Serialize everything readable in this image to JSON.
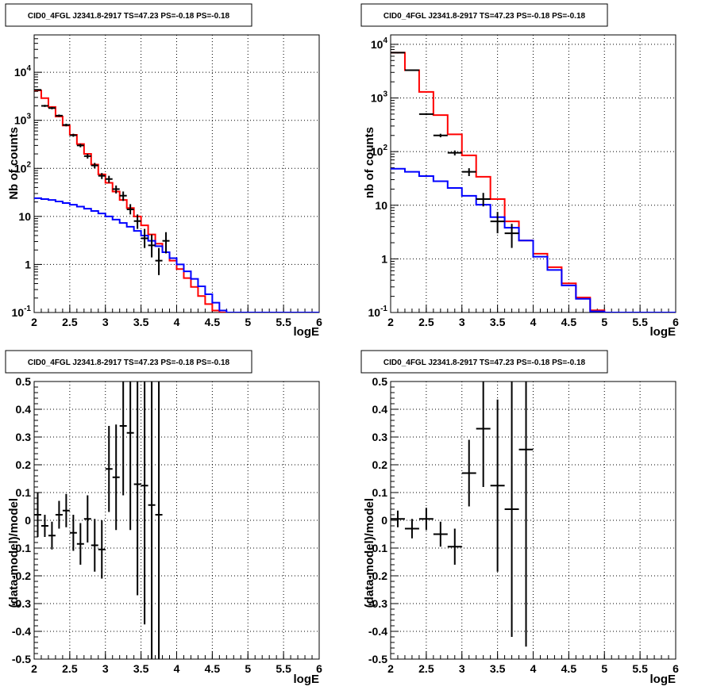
{
  "colors": {
    "data": "#000000",
    "model_total": "#ff0000",
    "model_background": "#0000ff",
    "grid": "#000000"
  },
  "chart_data": [
    {
      "panel": "top-left",
      "type": "line",
      "title": "CID0_4FGL J2341.8-2917 TS=47.23 PS=-0.18 PS=-0.18",
      "xlabel": "logE",
      "ylabel": "Nb of counts",
      "xlim": [
        2,
        6
      ],
      "ylim": [
        0.1,
        60000
      ],
      "yscale": "log",
      "grid": true,
      "x_ticks": [
        "2",
        "2.5",
        "3",
        "3.5",
        "4",
        "4.5",
        "5",
        "5.5",
        "6"
      ],
      "y_ticks": [
        "10^-1",
        "1",
        "10",
        "10^2",
        "10^3",
        "10^4"
      ],
      "bin_edges": [
        2.0,
        2.1,
        2.2,
        2.3,
        2.4,
        2.5,
        2.6,
        2.7,
        2.8,
        2.9,
        3.0,
        3.1,
        3.2,
        3.3,
        3.4,
        3.5,
        3.6,
        3.7,
        3.8,
        3.9,
        4.0,
        4.1,
        4.2,
        4.3,
        4.4,
        4.5,
        4.6,
        4.7,
        4.8,
        4.9,
        5.0,
        5.1,
        5.2,
        5.3,
        5.4,
        5.5,
        5.6,
        5.7,
        5.8,
        5.9,
        6.0
      ],
      "series": [
        {
          "name": "model_total",
          "kind": "step",
          "values": [
            4200,
            2900,
            1900,
            1200,
            780,
            500,
            320,
            200,
            120,
            75,
            50,
            33,
            22,
            15,
            10,
            6.5,
            4.2,
            2.7,
            1.8,
            1.2,
            0.8,
            0.52,
            0.34,
            0.22,
            0.15,
            0.11,
            0.1,
            0.1,
            0.1,
            0.1,
            0.1,
            0.1,
            0.1,
            0.1,
            0.1,
            0.1,
            0.1,
            0.1,
            0.1,
            0.1
          ]
        },
        {
          "name": "model_background",
          "kind": "step",
          "values": [
            24,
            23,
            22,
            20.5,
            19,
            17.5,
            16,
            14.5,
            13,
            11.5,
            10,
            8.6,
            7.3,
            6.1,
            5,
            4,
            3.1,
            2.4,
            1.8,
            1.35,
            1.0,
            0.72,
            0.5,
            0.35,
            0.24,
            0.16,
            0.11,
            0.1,
            0.1,
            0.1,
            0.1,
            0.1,
            0.1,
            0.1,
            0.1,
            0.1,
            0.1,
            0.1,
            0.1,
            0.1
          ]
        },
        {
          "name": "data",
          "kind": "points",
          "points": [
            [
              2.05,
              4300,
              4150,
              4450
            ],
            [
              2.15,
              2000,
              1900,
              2100
            ],
            [
              2.25,
              1800,
              1700,
              1900
            ],
            [
              2.35,
              1250,
              1180,
              1320
            ],
            [
              2.45,
              800,
              750,
              850
            ],
            [
              2.55,
              490,
              455,
              525
            ],
            [
              2.65,
              300,
              275,
              325
            ],
            [
              2.75,
              180,
              160,
              200
            ],
            [
              2.85,
              115,
              100,
              130
            ],
            [
              2.95,
              70,
              60,
              80
            ],
            [
              3.05,
              60,
              50,
              70
            ],
            [
              3.15,
              37,
              30,
              44
            ],
            [
              3.25,
              27,
              21,
              33
            ],
            [
              3.35,
              14,
              11,
              18
            ],
            [
              3.45,
              8,
              5.5,
              11
            ],
            [
              3.55,
              3.5,
              2.2,
              5.5
            ],
            [
              3.65,
              2.5,
              1.4,
              4.2
            ],
            [
              3.75,
              1.2,
              0.6,
              2.2
            ],
            [
              3.85,
              3.1,
              1.7,
              4.7
            ]
          ]
        }
      ]
    },
    {
      "panel": "top-right",
      "type": "line",
      "title": "CID0_4FGL J2341.8-2917 TS=47.23 PS=-0.18 PS=-0.18",
      "xlabel": "logE",
      "ylabel": "nb of counts",
      "xlim": [
        2,
        6
      ],
      "ylim": [
        0.1,
        15000
      ],
      "yscale": "log",
      "grid": true,
      "x_ticks": [
        "2",
        "2.5",
        "3",
        "3.5",
        "4",
        "4.5",
        "5",
        "5.5",
        "6"
      ],
      "y_ticks": [
        "10^-1",
        "1",
        "10",
        "10^2",
        "10^3",
        "10^4"
      ],
      "bin_edges": [
        2.0,
        2.2,
        2.4,
        2.6,
        2.8,
        3.0,
        3.2,
        3.4,
        3.6,
        3.8,
        4.0,
        4.2,
        4.4,
        4.6,
        4.8,
        5.0,
        5.2,
        5.4,
        5.6,
        5.8,
        6.0
      ],
      "series": [
        {
          "name": "model_total",
          "kind": "step",
          "values": [
            7000,
            3300,
            1300,
            480,
            210,
            85,
            34,
            13,
            5,
            2.2,
            1.25,
            0.7,
            0.35,
            0.19,
            0.11,
            0.1,
            0.1,
            0.1,
            0.1,
            0.1
          ]
        },
        {
          "name": "model_background",
          "kind": "step",
          "values": [
            48,
            42,
            35,
            28,
            21,
            15,
            10.2,
            6,
            3.8,
            2.2,
            1.1,
            0.62,
            0.32,
            0.18,
            0.105,
            0.1,
            0.1,
            0.1,
            0.1,
            0.1
          ]
        },
        {
          "name": "data",
          "kind": "points",
          "points": [
            [
              2.1,
              7000,
              6800,
              7200
            ],
            [
              2.3,
              3300,
              3200,
              3400
            ],
            [
              2.5,
              500,
              480,
              520
            ],
            [
              2.7,
              200,
              185,
              215
            ],
            [
              2.9,
              95,
              85,
              105
            ],
            [
              3.1,
              42,
              35,
              49
            ],
            [
              3.3,
              13,
              9.5,
              17
            ],
            [
              3.5,
              5,
              3,
              7.5
            ],
            [
              3.7,
              3,
              1.6,
              4.5
            ]
          ]
        }
      ]
    },
    {
      "panel": "bottom-left",
      "type": "scatter",
      "title": "CID0_4FGL J2341.8-2917 TS=47.23 PS=-0.18 PS=-0.18",
      "xlabel": "logE",
      "ylabel": "(data-model)/model",
      "xlim": [
        2,
        6
      ],
      "ylim": [
        -0.5,
        0.5
      ],
      "yscale": "linear",
      "grid": true,
      "x_ticks": [
        "2",
        "2.5",
        "3",
        "3.5",
        "4",
        "4.5",
        "5",
        "5.5",
        "6"
      ],
      "y_ticks": [
        "-0.5",
        "-0.4",
        "-0.3",
        "-0.2",
        "-0.1",
        "0",
        "0.1",
        "0.2",
        "0.3",
        "0.4",
        "0.5"
      ],
      "series": [
        {
          "name": "residual",
          "kind": "points",
          "xerr": 0.05,
          "points": [
            [
              2.05,
              0.02,
              0.08
            ],
            [
              2.15,
              -0.02,
              0.04
            ],
            [
              2.25,
              -0.055,
              0.05
            ],
            [
              2.35,
              0.02,
              0.05
            ],
            [
              2.45,
              0.035,
              0.06
            ],
            [
              2.55,
              -0.045,
              0.065
            ],
            [
              2.65,
              -0.085,
              0.075
            ],
            [
              2.75,
              0.005,
              0.085
            ],
            [
              2.85,
              -0.09,
              0.095
            ],
            [
              2.95,
              -0.105,
              0.105
            ],
            [
              3.05,
              0.185,
              0.155
            ],
            [
              3.15,
              0.155,
              0.19
            ],
            [
              3.25,
              0.34,
              0.25
            ],
            [
              3.35,
              0.315,
              0.35
            ],
            [
              3.45,
              0.13,
              0.4
            ],
            [
              3.55,
              0.125,
              0.5
            ],
            [
              3.65,
              0.055,
              0.6
            ],
            [
              3.75,
              0.02,
              0.7
            ]
          ]
        }
      ]
    },
    {
      "panel": "bottom-right",
      "type": "scatter",
      "title": "CID0_4FGL J2341.8-2917 TS=47.23 PS=-0.18 PS=-0.18",
      "xlabel": "logE",
      "ylabel": "(data-model)/model",
      "xlim": [
        2,
        6
      ],
      "ylim": [
        -0.5,
        0.5
      ],
      "yscale": "linear",
      "grid": true,
      "x_ticks": [
        "2",
        "2.5",
        "3",
        "3.5",
        "4",
        "4.5",
        "5",
        "5.5",
        "6"
      ],
      "y_ticks": [
        "-0.5",
        "-0.4",
        "-0.3",
        "-0.2",
        "-0.1",
        "0",
        "0.1",
        "0.2",
        "0.3",
        "0.4",
        "0.5"
      ],
      "series": [
        {
          "name": "residual",
          "kind": "points",
          "xerr": 0.1,
          "points": [
            [
              2.1,
              0.005,
              0.03
            ],
            [
              2.3,
              -0.03,
              0.035
            ],
            [
              2.5,
              0.005,
              0.04
            ],
            [
              2.7,
              -0.05,
              0.045
            ],
            [
              2.9,
              -0.095,
              0.065
            ],
            [
              3.1,
              0.17,
              0.12
            ],
            [
              3.3,
              0.33,
              0.21
            ],
            [
              3.5,
              0.125,
              0.31
            ],
            [
              3.7,
              0.04,
              0.46
            ],
            [
              3.9,
              0.255,
              0.71
            ]
          ]
        }
      ]
    }
  ]
}
